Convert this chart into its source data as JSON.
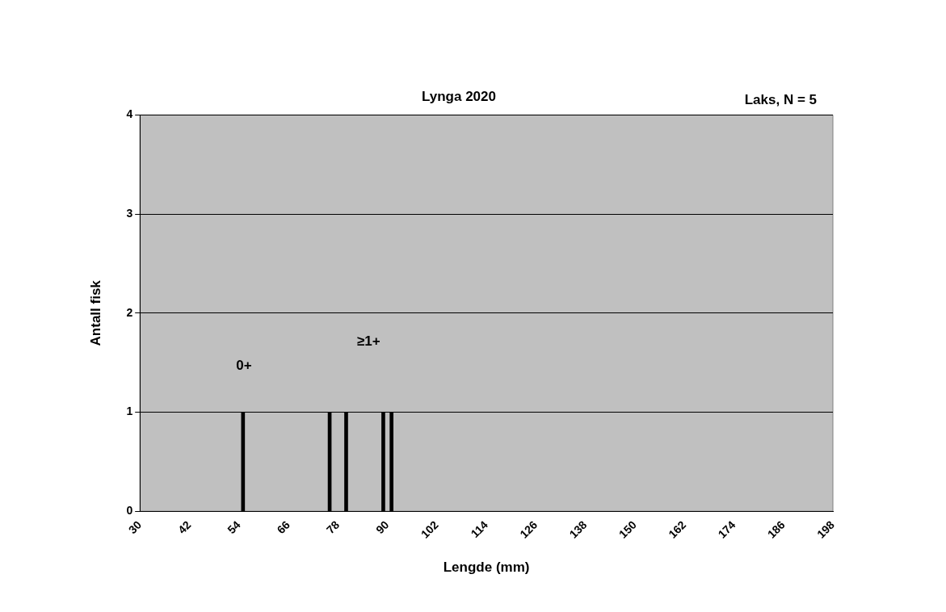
{
  "chart_data": {
    "type": "bar",
    "title": "Lynga 2020",
    "xlabel": "Lengde (mm)",
    "ylabel": "Antall fisk",
    "x": [
      55,
      76,
      80,
      89,
      91
    ],
    "values": [
      1,
      1,
      1,
      1,
      1
    ],
    "color": "#000000",
    "xlim": [
      30,
      198
    ],
    "xticks": [
      30,
      42,
      54,
      66,
      78,
      90,
      102,
      114,
      126,
      138,
      150,
      162,
      174,
      186,
      198
    ],
    "ylim": [
      0,
      4
    ],
    "yticks": [
      0,
      1,
      2,
      3,
      4
    ],
    "grid": "y",
    "legend": false,
    "annotations": [
      "Laks, N = 5",
      "0+",
      "≥1+"
    ]
  }
}
